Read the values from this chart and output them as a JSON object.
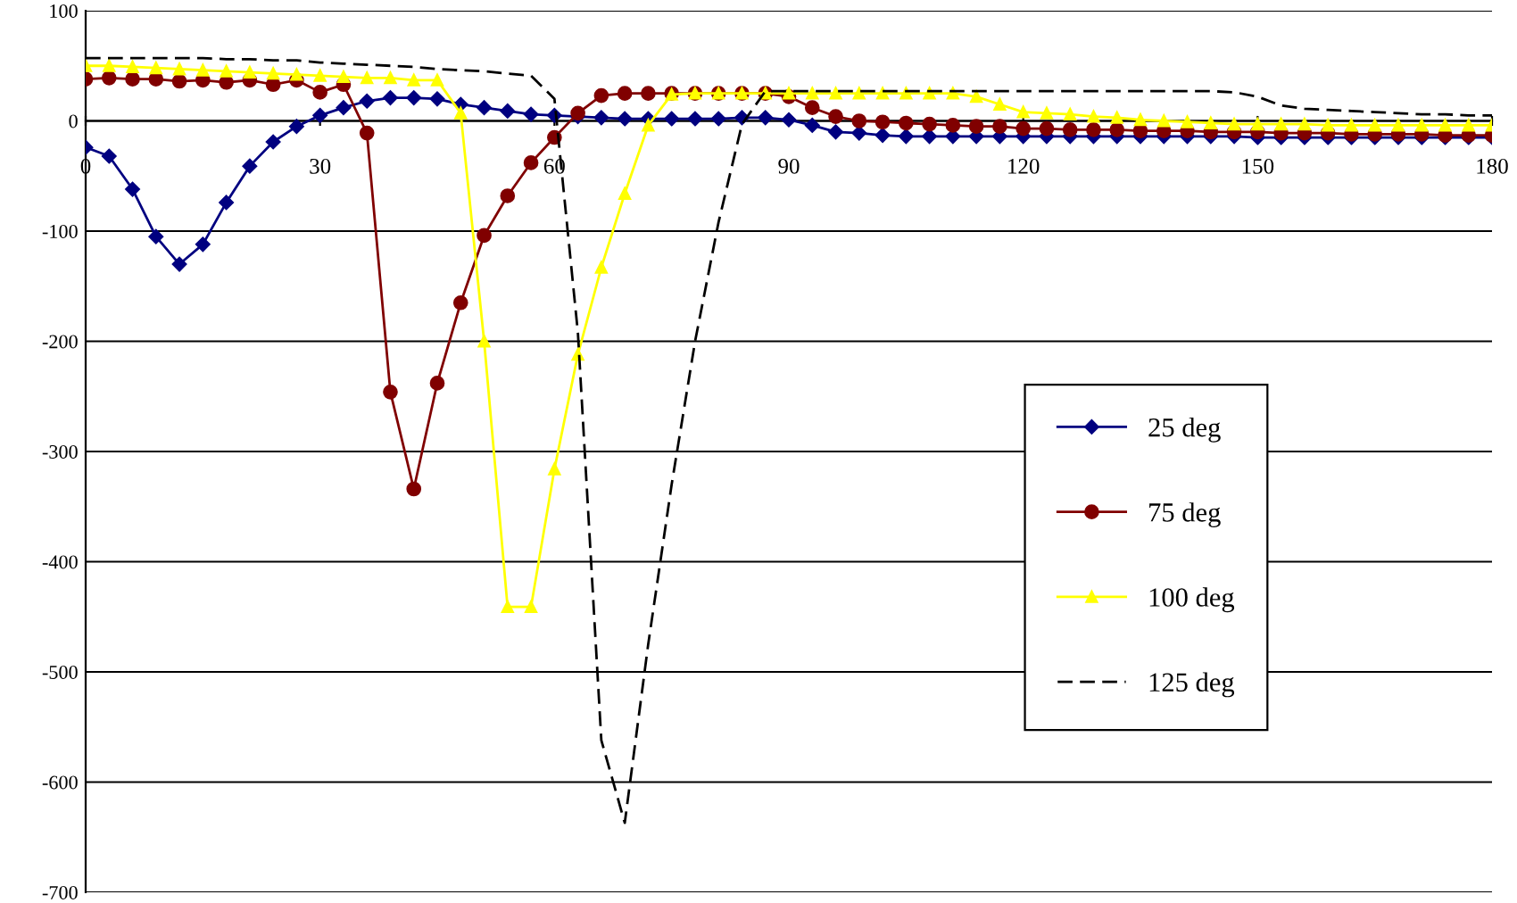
{
  "chart_data": {
    "type": "line",
    "x": [
      0,
      3,
      6,
      9,
      12,
      15,
      18,
      21,
      24,
      27,
      30,
      33,
      36,
      39,
      42,
      45,
      48,
      51,
      54,
      57,
      60,
      63,
      66,
      69,
      72,
      75,
      78,
      81,
      84,
      87,
      90,
      93,
      96,
      99,
      102,
      105,
      108,
      111,
      114,
      117,
      120,
      123,
      126,
      129,
      132,
      135,
      138,
      141,
      144,
      147,
      150,
      153,
      156,
      159,
      162,
      165,
      168,
      171,
      174,
      177,
      180
    ],
    "series": [
      {
        "name": "25 deg",
        "color": "#000080",
        "marker": "diamond",
        "line_style": "solid",
        "values": [
          -24,
          -32,
          -62,
          -105,
          -130,
          -112,
          -74,
          -41,
          -19,
          -5,
          5,
          12,
          18,
          21,
          21,
          20,
          15,
          12,
          9,
          6,
          5,
          4,
          3,
          2,
          2,
          2,
          2,
          2,
          3,
          3,
          1,
          -4,
          -10,
          -11,
          -13,
          -14,
          -14,
          -14,
          -14,
          -14,
          -14,
          -14,
          -14,
          -14,
          -14,
          -14,
          -14,
          -14,
          -14,
          -14,
          -15,
          -15,
          -15,
          -15,
          -15,
          -15,
          -15,
          -15,
          -15,
          -15,
          -15
        ]
      },
      {
        "name": "75 deg",
        "color": "#800000",
        "marker": "circle",
        "line_style": "solid",
        "values": [
          38,
          39,
          38,
          38,
          36,
          37,
          35,
          37,
          33,
          37,
          26,
          33,
          -11,
          -246,
          -334,
          -238,
          -165,
          -104,
          -68,
          -38,
          -15,
          7,
          23,
          25,
          25,
          25,
          25,
          25,
          25,
          25,
          22,
          12,
          4,
          0,
          -1,
          -2,
          -3,
          -4,
          -5,
          -5,
          -7,
          -7,
          -8,
          -8,
          -8,
          -9,
          -9,
          -9,
          -10,
          -10,
          -10,
          -11,
          -11,
          -11,
          -12,
          -12,
          -12,
          -12,
          -13,
          -13,
          -13
        ]
      },
      {
        "name": "100 deg",
        "color": "#ffff00",
        "marker": "triangle",
        "line_style": "solid",
        "values": [
          50,
          50,
          49,
          48,
          47,
          46,
          45,
          44,
          43,
          42,
          41,
          40,
          39,
          39,
          37,
          37,
          7,
          -200,
          -441,
          -441,
          -316,
          -212,
          -133,
          -66,
          -4,
          24,
          25,
          25,
          25,
          25,
          25,
          25,
          25,
          25,
          25,
          25,
          25,
          25,
          22,
          15,
          8,
          7,
          6,
          4,
          3,
          1,
          0,
          -1,
          -2,
          -3,
          -3,
          -3,
          -3,
          -4,
          -4,
          -4,
          -4,
          -4,
          -4,
          -4,
          -4
        ]
      },
      {
        "name": "125 deg",
        "color": "#000000",
        "marker": "none",
        "line_style": "dashed",
        "values": [
          57,
          57,
          57,
          57,
          57,
          57,
          56,
          56,
          55,
          55,
          53,
          52,
          51,
          50,
          49,
          47,
          46,
          45,
          43,
          41,
          20,
          -192,
          -562,
          -637,
          -475,
          -330,
          -200,
          -92,
          -3,
          27,
          27,
          27,
          27,
          27,
          27,
          27,
          27,
          27,
          27,
          27,
          27,
          27,
          27,
          27,
          27,
          27,
          27,
          27,
          27,
          26,
          22,
          14,
          11,
          10,
          9,
          8,
          7,
          6,
          6,
          5,
          5
        ]
      }
    ],
    "xlim": [
      0,
      180
    ],
    "xticks": [
      0,
      30,
      60,
      90,
      120,
      150,
      180
    ],
    "ylim": [
      -700,
      100
    ],
    "yticks": [
      -700,
      -600,
      -500,
      -400,
      -300,
      -200,
      -100,
      0,
      100
    ],
    "grid": "y",
    "legend": "right"
  }
}
